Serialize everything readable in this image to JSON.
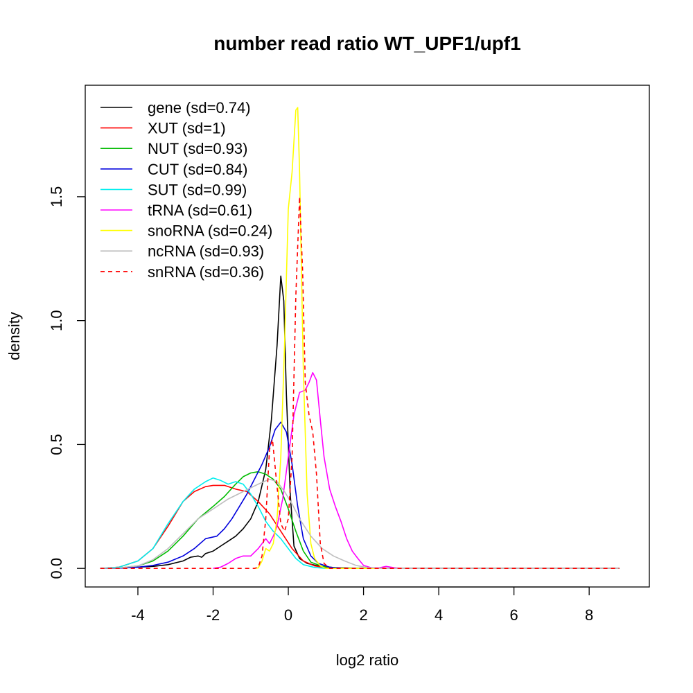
{
  "chart_data": {
    "type": "line",
    "title": "number read ratio WT_UPF1/upf1",
    "xlabel": "log2 ratio",
    "ylabel": "density",
    "xlim": [
      -5.4,
      9.6
    ],
    "ylim": [
      -0.075,
      1.95
    ],
    "x_ticks": [
      -4,
      -2,
      0,
      2,
      4,
      6,
      8
    ],
    "x_tick_labels": [
      "-4",
      "-2",
      "0",
      "2",
      "4",
      "6",
      "8"
    ],
    "y_ticks": [
      0.0,
      0.5,
      1.0,
      1.5
    ],
    "y_tick_labels": [
      "0.0",
      "0.5",
      "1.0",
      "1.5"
    ],
    "grid": false,
    "legend_position": "top-left",
    "series": [
      {
        "name": "gene (sd=0.74)",
        "color": "#000000",
        "dash": "solid",
        "points": [
          [
            -5.0,
            0
          ],
          [
            -4.5,
            0.001
          ],
          [
            -4.0,
            0.005
          ],
          [
            -3.6,
            0.008
          ],
          [
            -3.2,
            0.015
          ],
          [
            -2.8,
            0.03
          ],
          [
            -2.6,
            0.045
          ],
          [
            -2.4,
            0.05
          ],
          [
            -2.3,
            0.045
          ],
          [
            -2.2,
            0.06
          ],
          [
            -2.0,
            0.07
          ],
          [
            -1.8,
            0.09
          ],
          [
            -1.6,
            0.11
          ],
          [
            -1.4,
            0.13
          ],
          [
            -1.2,
            0.16
          ],
          [
            -1.0,
            0.2
          ],
          [
            -0.8,
            0.27
          ],
          [
            -0.6,
            0.4
          ],
          [
            -0.45,
            0.6
          ],
          [
            -0.3,
            0.9
          ],
          [
            -0.2,
            1.18
          ],
          [
            -0.12,
            1.08
          ],
          [
            -0.05,
            0.7
          ],
          [
            0.05,
            0.3
          ],
          [
            0.15,
            0.09
          ],
          [
            0.3,
            0.04
          ],
          [
            0.5,
            0.02
          ],
          [
            0.8,
            0.01
          ],
          [
            1.2,
            0.003
          ],
          [
            2.0,
            0
          ],
          [
            8.8,
            0
          ]
        ]
      },
      {
        "name": "XUT (sd=1)",
        "color": "#ff0000",
        "dash": "solid",
        "points": [
          [
            -5.0,
            0
          ],
          [
            -4.5,
            0.005
          ],
          [
            -4.0,
            0.03
          ],
          [
            -3.6,
            0.08
          ],
          [
            -3.2,
            0.17
          ],
          [
            -2.8,
            0.27
          ],
          [
            -2.5,
            0.31
          ],
          [
            -2.2,
            0.33
          ],
          [
            -2.0,
            0.335
          ],
          [
            -1.7,
            0.335
          ],
          [
            -1.4,
            0.32
          ],
          [
            -1.1,
            0.31
          ],
          [
            -0.8,
            0.27
          ],
          [
            -0.5,
            0.22
          ],
          [
            -0.2,
            0.15
          ],
          [
            0.1,
            0.08
          ],
          [
            0.4,
            0.03
          ],
          [
            0.7,
            0.01
          ],
          [
            1.0,
            0.003
          ],
          [
            2.0,
            0
          ],
          [
            8.8,
            0
          ]
        ]
      },
      {
        "name": "NUT (sd=0.93)",
        "color": "#00bb00",
        "dash": "solid",
        "points": [
          [
            -5.0,
            0
          ],
          [
            -4.5,
            0.002
          ],
          [
            -4.0,
            0.01
          ],
          [
            -3.6,
            0.03
          ],
          [
            -3.2,
            0.07
          ],
          [
            -2.8,
            0.13
          ],
          [
            -2.4,
            0.2
          ],
          [
            -2.0,
            0.25
          ],
          [
            -1.7,
            0.29
          ],
          [
            -1.4,
            0.34
          ],
          [
            -1.2,
            0.37
          ],
          [
            -1.0,
            0.385
          ],
          [
            -0.8,
            0.39
          ],
          [
            -0.6,
            0.38
          ],
          [
            -0.4,
            0.36
          ],
          [
            -0.2,
            0.32
          ],
          [
            0.0,
            0.24
          ],
          [
            0.2,
            0.15
          ],
          [
            0.4,
            0.07
          ],
          [
            0.6,
            0.025
          ],
          [
            0.9,
            0.008
          ],
          [
            1.3,
            0.002
          ],
          [
            2.0,
            0
          ],
          [
            8.8,
            0
          ]
        ]
      },
      {
        "name": "CUT (sd=0.84)",
        "color": "#0000dd",
        "dash": "solid",
        "points": [
          [
            -5.0,
            0
          ],
          [
            -4.5,
            0.001
          ],
          [
            -4.0,
            0.005
          ],
          [
            -3.6,
            0.012
          ],
          [
            -3.2,
            0.025
          ],
          [
            -2.8,
            0.05
          ],
          [
            -2.5,
            0.08
          ],
          [
            -2.2,
            0.12
          ],
          [
            -1.9,
            0.13
          ],
          [
            -1.7,
            0.16
          ],
          [
            -1.5,
            0.2
          ],
          [
            -1.3,
            0.25
          ],
          [
            -1.1,
            0.3
          ],
          [
            -0.9,
            0.36
          ],
          [
            -0.7,
            0.42
          ],
          [
            -0.5,
            0.49
          ],
          [
            -0.35,
            0.56
          ],
          [
            -0.2,
            0.59
          ],
          [
            -0.05,
            0.55
          ],
          [
            0.1,
            0.42
          ],
          [
            0.25,
            0.25
          ],
          [
            0.4,
            0.12
          ],
          [
            0.6,
            0.05
          ],
          [
            0.8,
            0.02
          ],
          [
            1.1,
            0.005
          ],
          [
            1.5,
            0
          ],
          [
            8.8,
            0
          ]
        ]
      },
      {
        "name": "SUT (sd=0.99)",
        "color": "#00eeee",
        "dash": "solid",
        "points": [
          [
            -5.0,
            0
          ],
          [
            -4.5,
            0.005
          ],
          [
            -4.0,
            0.03
          ],
          [
            -3.6,
            0.08
          ],
          [
            -3.2,
            0.18
          ],
          [
            -2.8,
            0.27
          ],
          [
            -2.5,
            0.32
          ],
          [
            -2.2,
            0.35
          ],
          [
            -2.0,
            0.365
          ],
          [
            -1.8,
            0.355
          ],
          [
            -1.6,
            0.34
          ],
          [
            -1.4,
            0.35
          ],
          [
            -1.2,
            0.34
          ],
          [
            -1.0,
            0.3
          ],
          [
            -0.8,
            0.25
          ],
          [
            -0.6,
            0.19
          ],
          [
            -0.4,
            0.15
          ],
          [
            -0.2,
            0.12
          ],
          [
            0.0,
            0.08
          ],
          [
            0.2,
            0.04
          ],
          [
            0.4,
            0.015
          ],
          [
            0.7,
            0.004
          ],
          [
            1.0,
            0
          ],
          [
            8.8,
            0
          ]
        ]
      },
      {
        "name": "tRNA (sd=0.61)",
        "color": "#ff00ff",
        "dash": "solid",
        "points": [
          [
            -2.0,
            0
          ],
          [
            -1.8,
            0.005
          ],
          [
            -1.6,
            0.02
          ],
          [
            -1.4,
            0.04
          ],
          [
            -1.2,
            0.05
          ],
          [
            -1.0,
            0.05
          ],
          [
            -0.8,
            0.08
          ],
          [
            -0.6,
            0.12
          ],
          [
            -0.5,
            0.1
          ],
          [
            -0.4,
            0.13
          ],
          [
            -0.3,
            0.17
          ],
          [
            -0.15,
            0.28
          ],
          [
            0.0,
            0.45
          ],
          [
            0.15,
            0.62
          ],
          [
            0.3,
            0.71
          ],
          [
            0.45,
            0.72
          ],
          [
            0.55,
            0.75
          ],
          [
            0.65,
            0.79
          ],
          [
            0.75,
            0.76
          ],
          [
            0.85,
            0.6
          ],
          [
            0.95,
            0.45
          ],
          [
            1.1,
            0.32
          ],
          [
            1.25,
            0.25
          ],
          [
            1.4,
            0.19
          ],
          [
            1.55,
            0.12
          ],
          [
            1.7,
            0.07
          ],
          [
            1.85,
            0.04
          ],
          [
            2.0,
            0.012
          ],
          [
            2.2,
            0.003
          ],
          [
            2.4,
            0.002
          ],
          [
            2.6,
            0.008
          ],
          [
            2.8,
            0.003
          ],
          [
            3.0,
            0
          ],
          [
            8.8,
            0
          ]
        ]
      },
      {
        "name": "snoRNA (sd=0.24)",
        "color": "#ffff00",
        "dash": "solid",
        "points": [
          [
            -0.9,
            0
          ],
          [
            -0.8,
            0.002
          ],
          [
            -0.7,
            0.03
          ],
          [
            -0.6,
            0.08
          ],
          [
            -0.5,
            0.07
          ],
          [
            -0.4,
            0.1
          ],
          [
            -0.3,
            0.2
          ],
          [
            -0.2,
            0.45
          ],
          [
            -0.1,
            0.9
          ],
          [
            0.0,
            1.45
          ],
          [
            0.1,
            1.6
          ],
          [
            0.2,
            1.85
          ],
          [
            0.25,
            1.86
          ],
          [
            0.3,
            1.6
          ],
          [
            0.4,
            0.8
          ],
          [
            0.5,
            0.3
          ],
          [
            0.6,
            0.1
          ],
          [
            0.7,
            0.04
          ],
          [
            0.85,
            0.01
          ],
          [
            1.0,
            0
          ],
          [
            8.8,
            0
          ]
        ]
      },
      {
        "name": "ncRNA (sd=0.93)",
        "color": "#bebebe",
        "dash": "solid",
        "points": [
          [
            -5.0,
            0
          ],
          [
            -4.5,
            0.002
          ],
          [
            -4.0,
            0.01
          ],
          [
            -3.6,
            0.035
          ],
          [
            -3.2,
            0.08
          ],
          [
            -2.8,
            0.14
          ],
          [
            -2.4,
            0.2
          ],
          [
            -2.0,
            0.24
          ],
          [
            -1.6,
            0.28
          ],
          [
            -1.2,
            0.31
          ],
          [
            -0.8,
            0.34
          ],
          [
            -0.5,
            0.36
          ],
          [
            -0.3,
            0.35
          ],
          [
            -0.1,
            0.31
          ],
          [
            0.1,
            0.26
          ],
          [
            0.3,
            0.2
          ],
          [
            0.6,
            0.13
          ],
          [
            0.9,
            0.08
          ],
          [
            1.2,
            0.05
          ],
          [
            1.5,
            0.03
          ],
          [
            1.8,
            0.012
          ],
          [
            2.1,
            0.004
          ],
          [
            2.5,
            0
          ],
          [
            8.8,
            0
          ]
        ]
      },
      {
        "name": "snRNA (sd=0.36)",
        "color": "#ff0000",
        "dash": "dashed",
        "points": [
          [
            -5.0,
            0
          ],
          [
            -0.9,
            0
          ],
          [
            -0.8,
            0.005
          ],
          [
            -0.7,
            0.05
          ],
          [
            -0.6,
            0.2
          ],
          [
            -0.5,
            0.48
          ],
          [
            -0.42,
            0.52
          ],
          [
            -0.32,
            0.36
          ],
          [
            -0.2,
            0.18
          ],
          [
            -0.1,
            0.15
          ],
          [
            0.0,
            0.2
          ],
          [
            0.1,
            0.45
          ],
          [
            0.2,
            1.1
          ],
          [
            0.3,
            1.5
          ],
          [
            0.38,
            1.2
          ],
          [
            0.45,
            0.75
          ],
          [
            0.55,
            0.62
          ],
          [
            0.65,
            0.55
          ],
          [
            0.75,
            0.38
          ],
          [
            0.85,
            0.1
          ],
          [
            0.95,
            0.02
          ],
          [
            1.1,
            0
          ],
          [
            8.8,
            0
          ]
        ]
      }
    ]
  }
}
